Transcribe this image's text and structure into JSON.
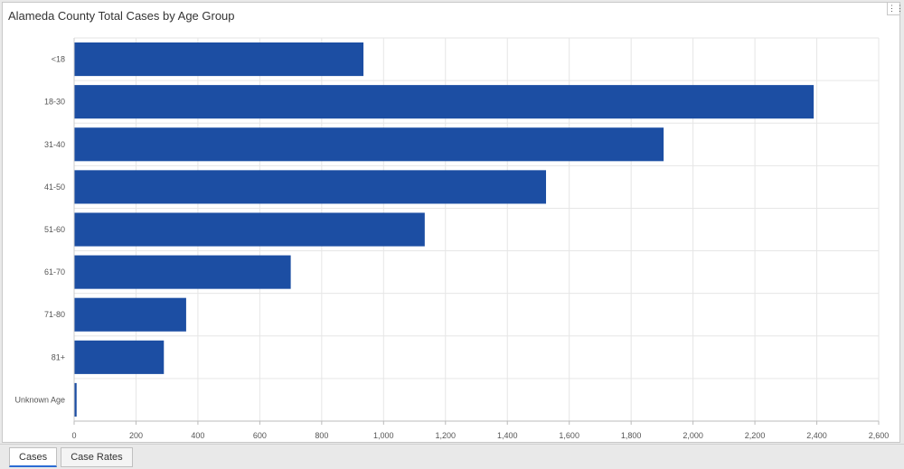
{
  "panel": {
    "title": "Alameda County Total Cases by Age Group",
    "corner_icon": "expand-dots-icon"
  },
  "tabs": [
    {
      "label": "Cases",
      "active": true
    },
    {
      "label": "Case Rates",
      "active": false
    }
  ],
  "colors": {
    "bar": "#1c4ea3",
    "grid": "#e6e6e6",
    "axis_text": "#555555"
  },
  "chart_data": {
    "type": "bar",
    "orientation": "horizontal",
    "title": "Alameda County Total Cases by Age Group",
    "categories": [
      "<18",
      "18-30",
      "31-40",
      "41-50",
      "51-60",
      "61-70",
      "71-80",
      "81+",
      "Unknown Age"
    ],
    "values": [
      935,
      2390,
      1905,
      1525,
      1133,
      700,
      362,
      290,
      8
    ],
    "xlim": [
      0,
      2600
    ],
    "xticks": [
      0,
      200,
      400,
      600,
      800,
      1000,
      1200,
      1400,
      1600,
      1800,
      2000,
      2200,
      2400,
      2600
    ],
    "xtick_labels": [
      "0",
      "200",
      "400",
      "600",
      "800",
      "1,000",
      "1,200",
      "1,400",
      "1,600",
      "1,800",
      "2,000",
      "2,200",
      "2,400",
      "2,600"
    ],
    "grid": true,
    "legend": "none"
  }
}
